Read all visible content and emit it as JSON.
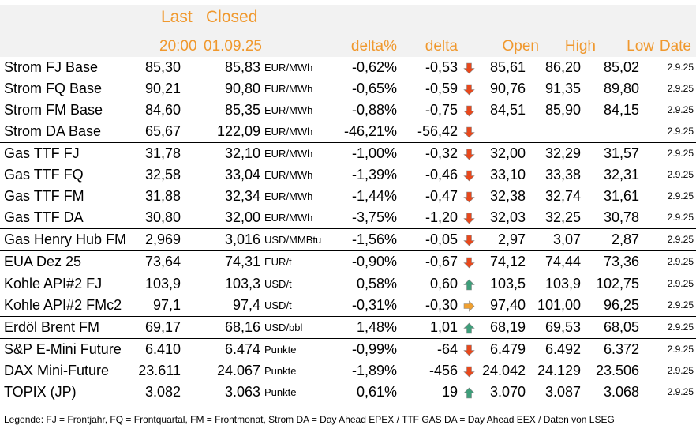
{
  "header": {
    "last_label": "Last",
    "closed_label": "Closed",
    "last_time": "20:00",
    "closed_date": "01.09.25",
    "delta_pct_label": "delta%",
    "delta_label": "delta",
    "open_label": "Open",
    "high_label": "High",
    "low_label": "Low",
    "date_label": "Date"
  },
  "arrow_colors": {
    "down": "#e8481c",
    "up": "#3e9e7a",
    "side": "#f0a030"
  },
  "rows": [
    {
      "name": "Strom FJ Base",
      "last": "85,30",
      "closed": "85,83",
      "unit": "EUR/MWh",
      "delta_pct": "-0,62%",
      "delta": "-0,53",
      "trend": "down",
      "open": "85,61",
      "high": "86,20",
      "low": "85,02",
      "date": "2.9.25",
      "sep": false
    },
    {
      "name": "Strom FQ Base",
      "last": "90,21",
      "closed": "90,80",
      "unit": "EUR/MWh",
      "delta_pct": "-0,65%",
      "delta": "-0,59",
      "trend": "down",
      "open": "90,76",
      "high": "91,35",
      "low": "89,80",
      "date": "2.9.25",
      "sep": false
    },
    {
      "name": "Strom FM Base",
      "last": "84,60",
      "closed": "85,35",
      "unit": "EUR/MWh",
      "delta_pct": "-0,88%",
      "delta": "-0,75",
      "trend": "down",
      "open": "84,51",
      "high": "85,90",
      "low": "84,15",
      "date": "2.9.25",
      "sep": false
    },
    {
      "name": "Strom DA Base",
      "last": "65,67",
      "closed": "122,09",
      "unit": "EUR/MWh",
      "delta_pct": "-46,21%",
      "delta": "-56,42",
      "trend": "down",
      "open": "",
      "high": "",
      "low": "",
      "date": "2.9.25",
      "sep": false
    },
    {
      "name": "Gas TTF FJ",
      "last": "31,78",
      "closed": "32,10",
      "unit": "EUR/MWh",
      "delta_pct": "-1,00%",
      "delta": "-0,32",
      "trend": "down",
      "open": "32,00",
      "high": "32,29",
      "low": "31,57",
      "date": "2.9.25",
      "sep": true
    },
    {
      "name": "Gas TTF FQ",
      "last": "32,58",
      "closed": "33,04",
      "unit": "EUR/MWh",
      "delta_pct": "-1,39%",
      "delta": "-0,46",
      "trend": "down",
      "open": "33,10",
      "high": "33,38",
      "low": "32,31",
      "date": "2.9.25",
      "sep": false
    },
    {
      "name": "Gas TTF FM",
      "last": "31,88",
      "closed": "32,34",
      "unit": "EUR/MWh",
      "delta_pct": "-1,44%",
      "delta": "-0,47",
      "trend": "down",
      "open": "32,38",
      "high": "32,74",
      "low": "31,61",
      "date": "2.9.25",
      "sep": false
    },
    {
      "name": "Gas TTF DA",
      "last": "30,80",
      "closed": "32,00",
      "unit": "EUR/MWh",
      "delta_pct": "-3,75%",
      "delta": "-1,20",
      "trend": "down",
      "open": "32,03",
      "high": "32,25",
      "low": "30,78",
      "date": "2.9.25",
      "sep": false
    },
    {
      "name": "Gas Henry Hub FM",
      "last": "2,969",
      "closed": "3,016",
      "unit": "USD/MMBtu",
      "delta_pct": "-1,56%",
      "delta": "-0,05",
      "trend": "down",
      "open": "2,97",
      "high": "3,07",
      "low": "2,87",
      "date": "2.9.25",
      "sep": true
    },
    {
      "name": "EUA Dez 25",
      "last": "73,64",
      "closed": "74,31",
      "unit": "EUR/t",
      "delta_pct": "-0,90%",
      "delta": "-0,67",
      "trend": "down",
      "open": "74,12",
      "high": "74,44",
      "low": "73,36",
      "date": "2.9.25",
      "sep": true
    },
    {
      "name": "Kohle API#2 FJ",
      "last": "103,9",
      "closed": "103,3",
      "unit": "USD/t",
      "delta_pct": "0,58%",
      "delta": "0,60",
      "trend": "up",
      "open": "103,5",
      "high": "103,9",
      "low": "102,75",
      "date": "2.9.25",
      "sep": true
    },
    {
      "name": "Kohle API#2 FMc2",
      "last": "97,1",
      "closed": "97,4",
      "unit": "USD/t",
      "delta_pct": "-0,31%",
      "delta": "-0,30",
      "trend": "side",
      "open": "97,40",
      "high": "101,00",
      "low": "96,25",
      "date": "2.9.25",
      "sep": false
    },
    {
      "name": "Erdöl Brent FM",
      "last": "69,17",
      "closed": "68,16",
      "unit": "USD/bbl",
      "delta_pct": "1,48%",
      "delta": "1,01",
      "trend": "up",
      "open": "68,19",
      "high": "69,53",
      "low": "68,05",
      "date": "2.9.25",
      "sep": true
    },
    {
      "name": "S&P E-Mini Future",
      "last": "6.410",
      "closed": "6.474",
      "unit": "Punkte",
      "delta_pct": "-0,99%",
      "delta": "-64",
      "trend": "down",
      "open": "6.479",
      "high": "6.492",
      "low": "6.372",
      "date": "2.9.25",
      "sep": true
    },
    {
      "name": "DAX Mini-Future",
      "last": "23.611",
      "closed": "24.067",
      "unit": "Punkte",
      "delta_pct": "-1,89%",
      "delta": "-456",
      "trend": "down",
      "open": "24.042",
      "high": "24.129",
      "low": "23.506",
      "date": "2.9.25",
      "sep": false
    },
    {
      "name": "TOPIX (JP)",
      "last": "3.082",
      "closed": "3.063",
      "unit": "Punkte",
      "delta_pct": "0,61%",
      "delta": "19",
      "trend": "up",
      "open": "3.070",
      "high": "3.087",
      "low": "3.068",
      "date": "2.9.25",
      "sep": false
    }
  ],
  "legend": "Legende: FJ = Frontjahr, FQ = Frontquartal, FM = Frontmonat, Strom DA = Day Ahead EPEX / TTF GAS DA = Day Ahead EEX / Daten von LSEG"
}
